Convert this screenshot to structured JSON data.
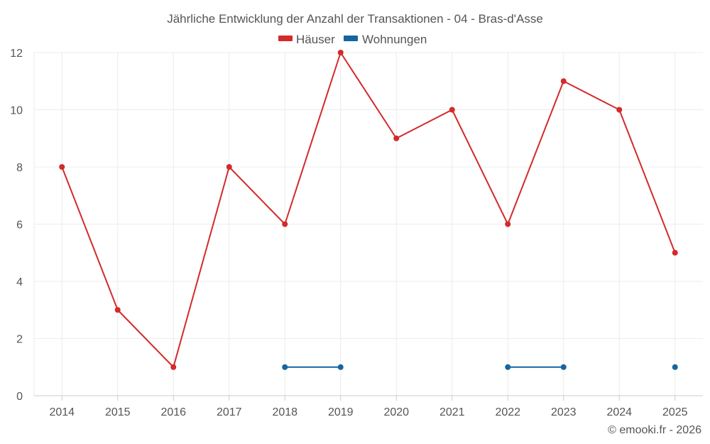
{
  "chart_data": {
    "type": "line",
    "title": "Jährliche Entwicklung der Anzahl der Transaktionen - 04 - Bras-d'Asse",
    "categories": [
      "2014",
      "2015",
      "2016",
      "2017",
      "2018",
      "2019",
      "2020",
      "2021",
      "2022",
      "2023",
      "2024",
      "2025"
    ],
    "ylim": [
      0,
      12
    ],
    "yticks": [
      0,
      2,
      4,
      6,
      8,
      10,
      12
    ],
    "grid": true,
    "legend_position": "top-center",
    "series": [
      {
        "name": "Häuser",
        "color": "#d32a2a",
        "values": [
          8,
          3,
          1,
          8,
          6,
          12,
          9,
          10,
          6,
          11,
          10,
          5
        ]
      },
      {
        "name": "Wohnungen",
        "color": "#1565a0",
        "values": [
          null,
          null,
          null,
          null,
          1,
          1,
          null,
          null,
          1,
          1,
          null,
          1
        ]
      }
    ]
  },
  "credit": "© emooki.fr - 2026"
}
